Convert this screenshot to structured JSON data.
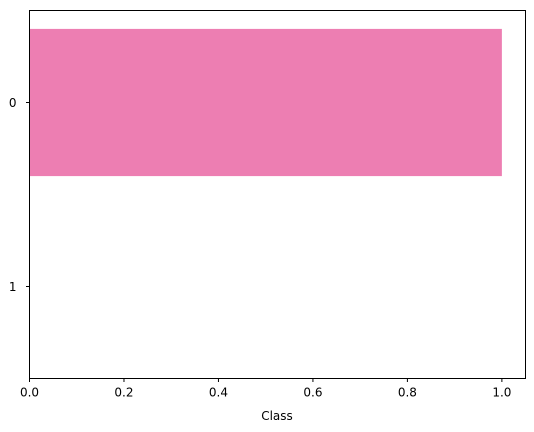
{
  "chart_data": {
    "type": "bar",
    "orientation": "horizontal",
    "categories": [
      "0",
      "1"
    ],
    "values": [
      1.0,
      null
    ],
    "xlabel": "Class",
    "ylabel": "",
    "xlim": [
      0,
      1.05
    ],
    "xticks": [
      "0.0",
      "0.2",
      "0.4",
      "0.6",
      "0.8",
      "1.0"
    ],
    "grid": false,
    "bar_color": "#ed7eb2"
  }
}
